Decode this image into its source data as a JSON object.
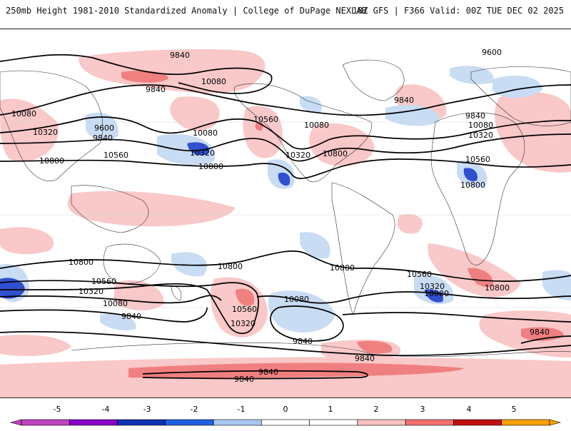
{
  "header": {
    "title": "250mb Height 1981-2010 Standardized Anomaly | College of DuPage NEXLAB",
    "run_info": "18Z GFS | F366 Valid: 00Z TUE DEC 02 2025"
  },
  "map": {
    "contour_labels": [
      {
        "id": "c1",
        "text": "9840"
      },
      {
        "id": "c2",
        "text": "10080"
      },
      {
        "id": "c3",
        "text": "9840"
      },
      {
        "id": "c4",
        "text": "10080"
      },
      {
        "id": "c5",
        "text": "9600"
      },
      {
        "id": "c6",
        "text": "9840"
      },
      {
        "id": "c7",
        "text": "10320"
      },
      {
        "id": "c8",
        "text": "10560"
      },
      {
        "id": "c9",
        "text": "10800"
      },
      {
        "id": "c10",
        "text": "10080"
      },
      {
        "id": "c11",
        "text": "10320"
      },
      {
        "id": "c12",
        "text": "10800"
      },
      {
        "id": "c13",
        "text": "10560"
      },
      {
        "id": "c14",
        "text": "10080"
      },
      {
        "id": "c15",
        "text": "10320"
      },
      {
        "id": "c16",
        "text": "10800"
      },
      {
        "id": "c17",
        "text": "9600"
      },
      {
        "id": "c18",
        "text": "9840"
      },
      {
        "id": "c19",
        "text": "9840"
      },
      {
        "id": "c20",
        "text": "10080"
      },
      {
        "id": "c21",
        "text": "10320"
      },
      {
        "id": "c22",
        "text": "10560"
      },
      {
        "id": "c23",
        "text": "10800"
      },
      {
        "id": "c24",
        "text": "10800"
      },
      {
        "id": "c25",
        "text": "10800"
      },
      {
        "id": "c26",
        "text": "10800"
      },
      {
        "id": "c27",
        "text": "10560"
      },
      {
        "id": "c28",
        "text": "10320"
      },
      {
        "id": "c29",
        "text": "10080"
      },
      {
        "id": "c30",
        "text": "9840"
      },
      {
        "id": "c31",
        "text": "10560"
      },
      {
        "id": "c32",
        "text": "10320"
      },
      {
        "id": "c33",
        "text": "10080"
      },
      {
        "id": "c34",
        "text": "9840"
      },
      {
        "id": "c35",
        "text": "10560"
      },
      {
        "id": "c36",
        "text": "10320"
      },
      {
        "id": "c37",
        "text": "10080"
      },
      {
        "id": "c38",
        "text": "10800"
      },
      {
        "id": "c39",
        "text": "9840"
      },
      {
        "id": "c40",
        "text": "9840"
      },
      {
        "id": "c41",
        "text": "9840"
      },
      {
        "id": "c42",
        "text": "9840"
      }
    ]
  },
  "colorbar": {
    "ticks": [
      "-5",
      "-4",
      "-3",
      "-2",
      "-1",
      "0",
      "1",
      "2",
      "3",
      "4",
      "5"
    ],
    "colors": [
      "#c040c0",
      "#8a00c8",
      "#1030b0",
      "#2060e0",
      "#a8c8f0",
      "#ffffff",
      "#ffffff",
      "#f8c0c0",
      "#f07070",
      "#c01010",
      "#f8a000"
    ]
  }
}
